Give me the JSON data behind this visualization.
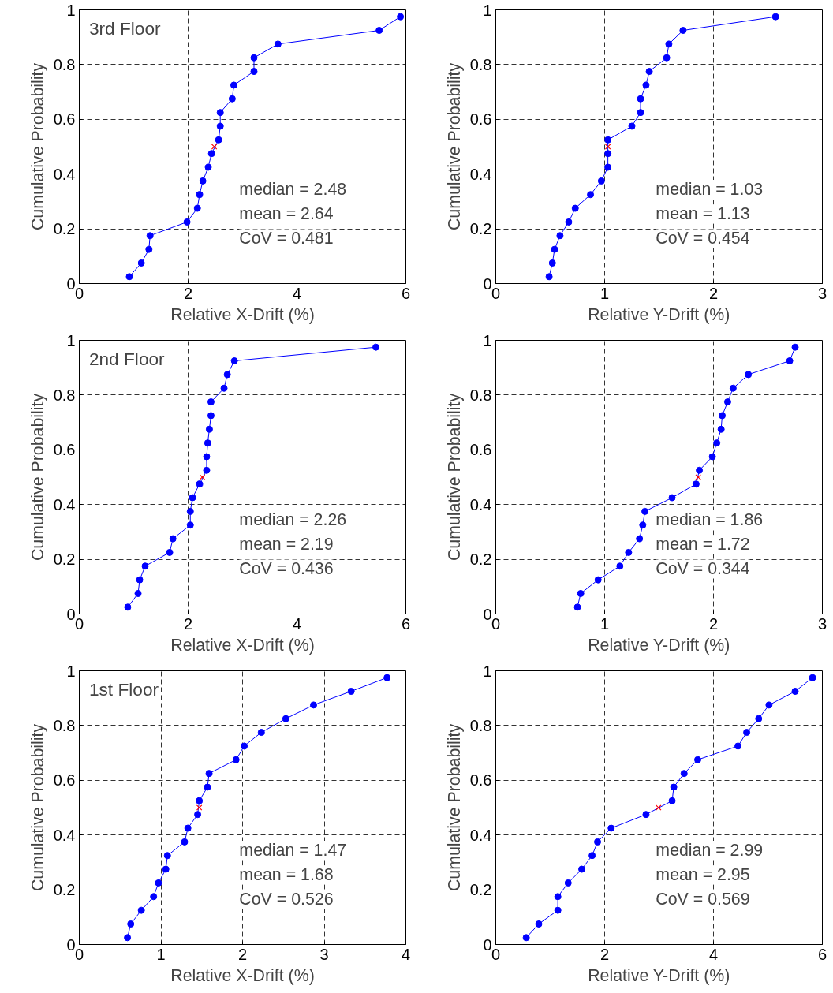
{
  "chart_data": [
    {
      "type": "line",
      "title": "3rd Floor",
      "xlabel": "Relative X-Drift (%)",
      "ylabel": "Cumulative Probability",
      "xlim": [
        0,
        6
      ],
      "xticks": [
        0,
        2,
        4,
        6
      ],
      "ylim": [
        0,
        1
      ],
      "yticks": [
        0,
        0.2,
        0.4,
        0.6,
        0.8,
        1
      ],
      "grid": true,
      "annotations": [
        "median = 2.48",
        "mean = 2.64",
        "CoV = 0.481"
      ],
      "series": [
        {
          "color": "#0000ff",
          "marker": "circle",
          "x": [
            0.92,
            1.14,
            1.28,
            1.3,
            1.98,
            2.17,
            2.21,
            2.27,
            2.37,
            2.43,
            2.56,
            2.59,
            2.59,
            2.81,
            2.84,
            3.21,
            3.21,
            3.65,
            5.51,
            5.9
          ],
          "values": [
            0.025,
            0.075,
            0.125,
            0.175,
            0.225,
            0.275,
            0.325,
            0.375,
            0.425,
            0.475,
            0.525,
            0.575,
            0.625,
            0.675,
            0.725,
            0.775,
            0.825,
            0.875,
            0.925,
            0.975
          ]
        },
        {
          "type": "scatter",
          "color": "#ff0000",
          "marker": "cross",
          "x": [
            2.48
          ],
          "values": [
            0.5
          ]
        }
      ]
    },
    {
      "type": "line",
      "xlabel": "Relative Y-Drift (%)",
      "ylabel": "Cumulative Probability",
      "xlim": [
        0,
        3
      ],
      "xticks": [
        0,
        1,
        2,
        3
      ],
      "ylim": [
        0,
        1
      ],
      "yticks": [
        0,
        0.2,
        0.4,
        0.6,
        0.8,
        1
      ],
      "grid": true,
      "annotations": [
        "median = 1.03",
        "mean = 1.13",
        "CoV = 0.454"
      ],
      "series": [
        {
          "color": "#0000ff",
          "marker": "circle",
          "x": [
            0.49,
            0.52,
            0.54,
            0.59,
            0.67,
            0.73,
            0.87,
            0.97,
            1.03,
            1.03,
            1.03,
            1.25,
            1.33,
            1.33,
            1.38,
            1.41,
            1.57,
            1.59,
            1.72,
            2.57
          ],
          "values": [
            0.025,
            0.075,
            0.125,
            0.175,
            0.225,
            0.275,
            0.325,
            0.375,
            0.425,
            0.475,
            0.525,
            0.575,
            0.625,
            0.675,
            0.725,
            0.775,
            0.825,
            0.875,
            0.925,
            0.975
          ]
        },
        {
          "type": "scatter",
          "color": "#ff0000",
          "marker": "cross",
          "x": [
            1.03
          ],
          "values": [
            0.5
          ]
        }
      ]
    },
    {
      "type": "line",
      "title": "2nd Floor",
      "xlabel": "Relative X-Drift (%)",
      "ylabel": "Cumulative Probability",
      "xlim": [
        0,
        6
      ],
      "xticks": [
        0,
        2,
        4,
        6
      ],
      "ylim": [
        0,
        1
      ],
      "yticks": [
        0,
        0.2,
        0.4,
        0.6,
        0.8,
        1
      ],
      "grid": true,
      "annotations": [
        "median = 2.26",
        "mean = 2.19",
        "CoV = 0.436"
      ],
      "series": [
        {
          "color": "#0000ff",
          "marker": "circle",
          "x": [
            0.89,
            1.08,
            1.11,
            1.21,
            1.66,
            1.72,
            2.04,
            2.04,
            2.08,
            2.21,
            2.34,
            2.34,
            2.36,
            2.39,
            2.42,
            2.42,
            2.66,
            2.72,
            2.85,
            5.45
          ],
          "values": [
            0.025,
            0.075,
            0.125,
            0.175,
            0.225,
            0.275,
            0.325,
            0.375,
            0.425,
            0.475,
            0.525,
            0.575,
            0.625,
            0.675,
            0.725,
            0.775,
            0.825,
            0.875,
            0.925,
            0.975
          ]
        },
        {
          "type": "scatter",
          "color": "#ff0000",
          "marker": "cross",
          "x": [
            2.26
          ],
          "values": [
            0.5
          ]
        }
      ]
    },
    {
      "type": "line",
      "xlabel": "Relative Y-Drift (%)",
      "ylabel": "Cumulative Probability",
      "xlim": [
        0,
        3
      ],
      "xticks": [
        0,
        1,
        2,
        3
      ],
      "ylim": [
        0,
        1
      ],
      "yticks": [
        0,
        0.2,
        0.4,
        0.6,
        0.8,
        1
      ],
      "grid": true,
      "annotations": [
        "median = 1.86",
        "mean = 1.72",
        "CoV = 0.344"
      ],
      "series": [
        {
          "color": "#0000ff",
          "marker": "circle",
          "x": [
            0.75,
            0.78,
            0.94,
            1.14,
            1.22,
            1.32,
            1.35,
            1.37,
            1.62,
            1.84,
            1.87,
            1.99,
            2.03,
            2.07,
            2.08,
            2.13,
            2.18,
            2.32,
            2.7,
            2.75
          ],
          "values": [
            0.025,
            0.075,
            0.125,
            0.175,
            0.225,
            0.275,
            0.325,
            0.375,
            0.425,
            0.475,
            0.525,
            0.575,
            0.625,
            0.675,
            0.725,
            0.775,
            0.825,
            0.875,
            0.925,
            0.975
          ]
        },
        {
          "type": "scatter",
          "color": "#ff0000",
          "marker": "cross",
          "x": [
            1.86
          ],
          "values": [
            0.5
          ]
        }
      ]
    },
    {
      "type": "line",
      "title": "1st Floor",
      "xlabel": "Relative X-Drift (%)",
      "ylabel": "Cumulative Probability",
      "xlim": [
        0,
        4
      ],
      "xticks": [
        0,
        1,
        2,
        3,
        4
      ],
      "ylim": [
        0,
        1
      ],
      "yticks": [
        0,
        0.2,
        0.4,
        0.6,
        0.8,
        1
      ],
      "grid": true,
      "annotations": [
        "median = 1.47",
        "mean = 1.68",
        "CoV = 0.526"
      ],
      "series": [
        {
          "color": "#0000ff",
          "marker": "circle",
          "x": [
            0.59,
            0.63,
            0.76,
            0.91,
            0.97,
            1.06,
            1.08,
            1.29,
            1.33,
            1.45,
            1.47,
            1.57,
            1.59,
            1.92,
            2.02,
            2.23,
            2.53,
            2.87,
            3.33,
            3.77
          ],
          "values": [
            0.025,
            0.075,
            0.125,
            0.175,
            0.225,
            0.275,
            0.325,
            0.375,
            0.425,
            0.475,
            0.525,
            0.575,
            0.625,
            0.675,
            0.725,
            0.775,
            0.825,
            0.875,
            0.925,
            0.975
          ]
        },
        {
          "type": "scatter",
          "color": "#ff0000",
          "marker": "cross",
          "x": [
            1.47
          ],
          "values": [
            0.5
          ]
        }
      ]
    },
    {
      "type": "line",
      "xlabel": "Relative Y-Drift (%)",
      "ylabel": "Cumulative Probability",
      "xlim": [
        0,
        6
      ],
      "xticks": [
        0,
        2,
        4,
        6
      ],
      "ylim": [
        0,
        1
      ],
      "yticks": [
        0,
        0.2,
        0.4,
        0.6,
        0.8,
        1
      ],
      "grid": true,
      "annotations": [
        "median = 2.99",
        "mean = 2.95",
        "CoV = 0.569"
      ],
      "series": [
        {
          "color": "#0000ff",
          "marker": "circle",
          "x": [
            0.56,
            0.79,
            1.14,
            1.14,
            1.33,
            1.58,
            1.77,
            1.87,
            2.12,
            2.76,
            3.24,
            3.27,
            3.46,
            3.71,
            4.45,
            4.61,
            4.83,
            5.02,
            5.5,
            5.82
          ],
          "values": [
            0.025,
            0.075,
            0.125,
            0.175,
            0.225,
            0.275,
            0.325,
            0.375,
            0.425,
            0.475,
            0.525,
            0.575,
            0.625,
            0.675,
            0.725,
            0.775,
            0.825,
            0.875,
            0.925,
            0.975
          ]
        },
        {
          "type": "scatter",
          "color": "#ff0000",
          "marker": "cross",
          "x": [
            2.99
          ],
          "values": [
            0.5
          ]
        }
      ]
    }
  ]
}
